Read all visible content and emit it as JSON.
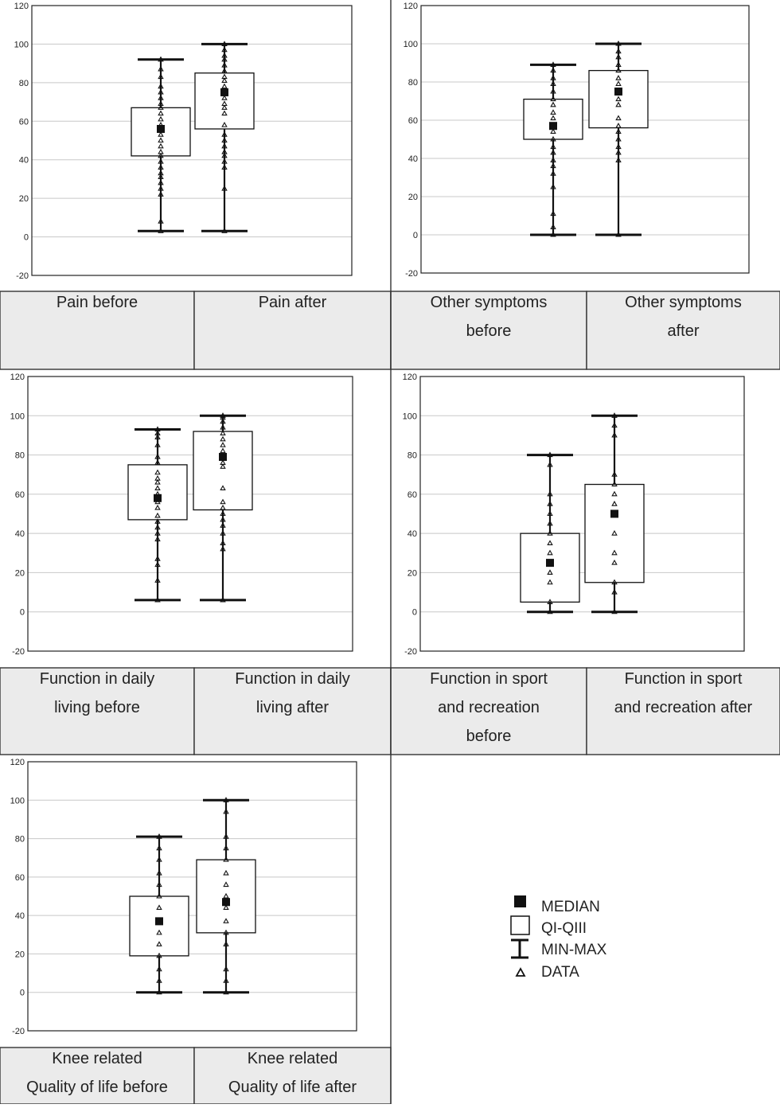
{
  "colors": {
    "box_stroke": "#111111",
    "median_fill": "#111111",
    "grid": "#c8c8c8",
    "label_cell_bg": "#ebebeb",
    "divider": "#333333"
  },
  "legend": {
    "median": "MEDIAN",
    "iqr": "QI-QIII",
    "minmax": "MIN-MAX",
    "data": "DATA"
  },
  "chart_data": [
    {
      "type": "box",
      "ylim": [
        -20,
        120
      ],
      "yticks": [
        -20,
        0,
        20,
        40,
        60,
        80,
        100,
        120
      ],
      "grid": true,
      "series": [
        {
          "label_lines": [
            "Pain before"
          ],
          "min": 3,
          "q1": 42,
          "median": 56,
          "q3": 67,
          "max": 92,
          "points": [
            3,
            8,
            22,
            25,
            28,
            31,
            33,
            36,
            39,
            42,
            44,
            47,
            50,
            53,
            56,
            58,
            61,
            64,
            67,
            69,
            72,
            75,
            78,
            83,
            87,
            92
          ]
        },
        {
          "label_lines": [
            "Pain after"
          ],
          "min": 3,
          "q1": 56,
          "median": 75,
          "q3": 85,
          "max": 100,
          "points": [
            3,
            25,
            36,
            39,
            42,
            44,
            47,
            50,
            53,
            58,
            64,
            67,
            69,
            72,
            75,
            78,
            81,
            83,
            86,
            89,
            92,
            94,
            97,
            100
          ]
        }
      ]
    },
    {
      "type": "box",
      "ylim": [
        -20,
        120
      ],
      "yticks": [
        -20,
        0,
        20,
        40,
        60,
        80,
        100,
        120
      ],
      "grid": true,
      "series": [
        {
          "label_lines": [
            "Other symptoms",
            "before"
          ],
          "min": 0,
          "q1": 50,
          "median": 57,
          "q3": 71,
          "max": 89,
          "points": [
            0,
            4,
            11,
            25,
            32,
            36,
            39,
            43,
            46,
            50,
            54,
            57,
            61,
            64,
            68,
            71,
            75,
            79,
            82,
            86,
            89
          ]
        },
        {
          "label_lines": [
            "Other symptoms",
            "after"
          ],
          "min": 0,
          "q1": 56,
          "median": 75,
          "q3": 86,
          "max": 100,
          "points": [
            0,
            39,
            43,
            46,
            50,
            54,
            57,
            61,
            68,
            71,
            75,
            79,
            82,
            86,
            89,
            93,
            96,
            100
          ]
        }
      ]
    },
    {
      "type": "box",
      "ylim": [
        -20,
        120
      ],
      "yticks": [
        -20,
        0,
        20,
        40,
        60,
        80,
        100,
        120
      ],
      "grid": true,
      "series": [
        {
          "label_lines": [
            "Function in daily",
            "living before"
          ],
          "min": 6,
          "q1": 47,
          "median": 58,
          "q3": 75,
          "max": 93,
          "points": [
            6,
            16,
            24,
            27,
            37,
            40,
            43,
            46,
            49,
            53,
            56,
            58,
            60,
            63,
            66,
            68,
            71,
            76,
            79,
            85,
            89,
            91,
            93
          ]
        },
        {
          "label_lines": [
            "Function in daily",
            "living after"
          ],
          "min": 6,
          "q1": 52,
          "median": 79,
          "q3": 92,
          "max": 100,
          "points": [
            6,
            32,
            35,
            40,
            44,
            47,
            50,
            53,
            56,
            63,
            74,
            76,
            79,
            82,
            85,
            88,
            91,
            94,
            97,
            99,
            100
          ]
        }
      ]
    },
    {
      "type": "box",
      "ylim": [
        -20,
        120
      ],
      "yticks": [
        -20,
        0,
        20,
        40,
        60,
        80,
        100,
        120
      ],
      "grid": true,
      "series": [
        {
          "label_lines": [
            "Function in sport",
            "and recreation",
            "before"
          ],
          "min": 0,
          "q1": 5,
          "median": 25,
          "q3": 40,
          "max": 80,
          "points": [
            0,
            5,
            15,
            20,
            25,
            30,
            35,
            40,
            45,
            50,
            55,
            60,
            75,
            80
          ]
        },
        {
          "label_lines": [
            "Function in sport",
            "and recreation after"
          ],
          "min": 0,
          "q1": 15,
          "median": 50,
          "q3": 65,
          "max": 100,
          "points": [
            0,
            10,
            15,
            25,
            30,
            40,
            50,
            55,
            60,
            65,
            70,
            90,
            95,
            100
          ]
        }
      ]
    },
    {
      "type": "box",
      "ylim": [
        -20,
        120
      ],
      "yticks": [
        -20,
        0,
        20,
        40,
        60,
        80,
        100,
        120
      ],
      "grid": true,
      "series": [
        {
          "label_lines": [
            "Knee related",
            "Quality of life before"
          ],
          "min": 0,
          "q1": 19,
          "median": 37,
          "q3": 50,
          "max": 81,
          "points": [
            0,
            6,
            12,
            19,
            25,
            31,
            37,
            44,
            50,
            56,
            62,
            69,
            75,
            81
          ]
        },
        {
          "label_lines": [
            "Knee related",
            "Quality of life after"
          ],
          "min": 0,
          "q1": 31,
          "median": 47,
          "q3": 69,
          "max": 100,
          "points": [
            0,
            6,
            12,
            25,
            31,
            37,
            44,
            50,
            56,
            62,
            69,
            75,
            81,
            94,
            100
          ]
        }
      ]
    }
  ]
}
